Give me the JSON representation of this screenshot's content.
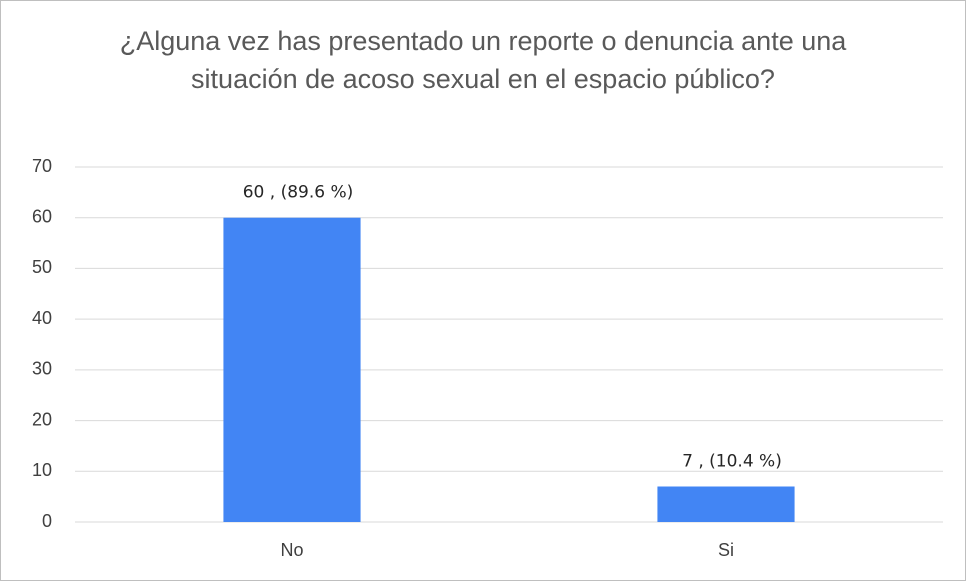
{
  "chart_data": {
    "type": "bar",
    "title": "¿Alguna vez has presentado un reporte o denuncia ante una situación de acoso sexual en el espacio público?",
    "categories": [
      "No",
      "Si"
    ],
    "values": [
      60,
      7
    ],
    "value_labels": [
      "60 , (89.6 %)",
      "7 , (10.4 %)"
    ],
    "color": "#4285f4",
    "ylim": [
      0,
      70
    ],
    "yticks": [
      0,
      10,
      20,
      30,
      40,
      50,
      60,
      70
    ],
    "grid": true
  }
}
